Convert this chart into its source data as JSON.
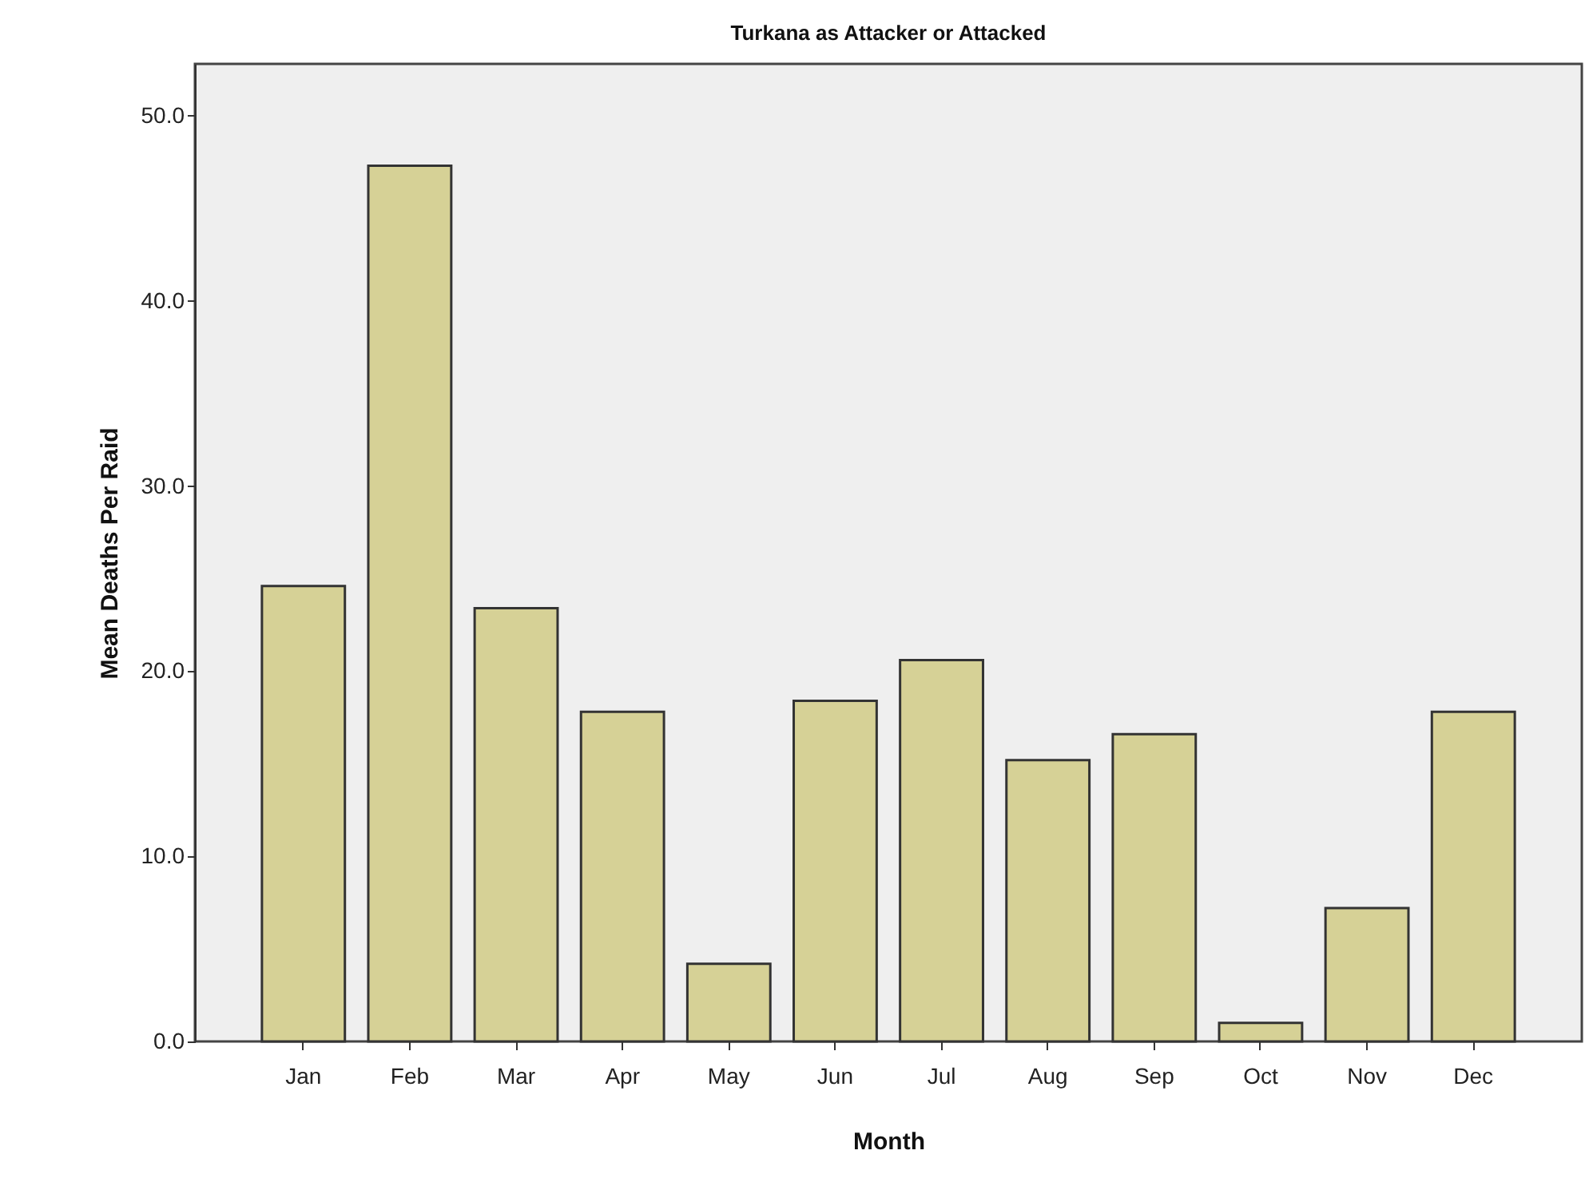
{
  "chart_data": {
    "type": "bar",
    "title": "Turkana as Attacker or Attacked",
    "xlabel": "Month",
    "ylabel": "Mean Deaths Per Raid",
    "categories": [
      "Jan",
      "Feb",
      "Mar",
      "Apr",
      "May",
      "Jun",
      "Jul",
      "Aug",
      "Sep",
      "Oct",
      "Nov",
      "Dec"
    ],
    "values": [
      24.6,
      47.3,
      23.4,
      17.8,
      4.2,
      18.4,
      20.6,
      15.2,
      16.6,
      1.0,
      7.2,
      17.8
    ],
    "color": "#d6d196",
    "ylim": [
      0,
      52.8
    ],
    "yticks": [
      {
        "value": 0,
        "label": "0.0"
      },
      {
        "value": 10,
        "label": "10.0"
      },
      {
        "value": 20,
        "label": "20.0"
      },
      {
        "value": 30,
        "label": "30.0"
      },
      {
        "value": 40,
        "label": "40.0"
      },
      {
        "value": 50,
        "label": "50.0"
      }
    ],
    "grid": false
  }
}
